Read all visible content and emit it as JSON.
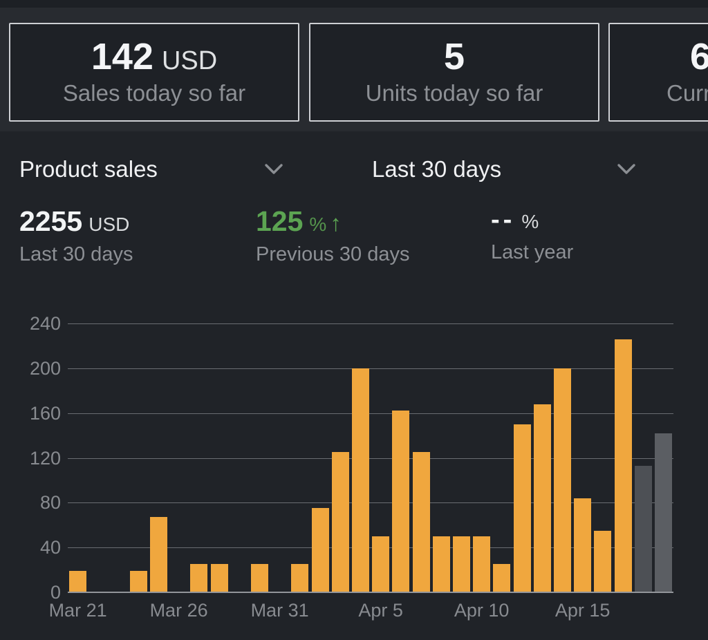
{
  "stat_cards": [
    {
      "value": "142",
      "unit": "USD",
      "label": "Sales today so far"
    },
    {
      "value": "5",
      "unit": "",
      "label": "Units today so far"
    },
    {
      "value": "6",
      "unit": "",
      "label": "Curr"
    }
  ],
  "filters": {
    "metric_dropdown": {
      "selected": "Product sales"
    },
    "range_dropdown": {
      "selected": "Last 30 days"
    }
  },
  "summary": [
    {
      "value": "2255",
      "unit": "USD",
      "label": "Last 30 days",
      "color": "#f2f4f5"
    },
    {
      "value": "125",
      "unit": "%",
      "arrow": "↑",
      "label": "Previous 30 days",
      "color": "#5ca452"
    },
    {
      "value": "--",
      "unit": "%",
      "label": "Last year",
      "color": "#f2f4f5"
    }
  ],
  "chart_data": {
    "type": "bar",
    "title": "",
    "xlabel": "",
    "ylabel": "",
    "grid": true,
    "legend": false,
    "ylim": [
      0,
      240
    ],
    "yticks": [
      0,
      40,
      80,
      120,
      160,
      200,
      240
    ],
    "categories": [
      "Mar 21",
      "Mar 22",
      "Mar 23",
      "Mar 24",
      "Mar 25",
      "Mar 26",
      "Mar 27",
      "Mar 28",
      "Mar 29",
      "Mar 30",
      "Mar 31",
      "Apr 1",
      "Apr 2",
      "Apr 3",
      "Apr 4",
      "Apr 5",
      "Apr 6",
      "Apr 7",
      "Apr 8",
      "Apr 9",
      "Apr 10",
      "Apr 11",
      "Apr 12",
      "Apr 13",
      "Apr 14",
      "Apr 15",
      "Apr 16",
      "Apr 17",
      "Apr 18",
      "Apr 19"
    ],
    "values": [
      19,
      0,
      0,
      19,
      67,
      0,
      25,
      25,
      0,
      25,
      0,
      25,
      75,
      125,
      200,
      50,
      162,
      125,
      50,
      50,
      50,
      25,
      150,
      168,
      200,
      84,
      55,
      226,
      113,
      142
    ],
    "xticks": [
      {
        "index": 0,
        "label": "Mar 21"
      },
      {
        "index": 5,
        "label": "Mar 26"
      },
      {
        "index": 10,
        "label": "Mar 31"
      },
      {
        "index": 15,
        "label": "Apr 5"
      },
      {
        "index": 20,
        "label": "Apr 10"
      },
      {
        "index": 25,
        "label": "Apr 15"
      }
    ],
    "bar_default_color": "#f0a73e",
    "bar_color_overrides": {
      "28": "#4d5055",
      "29": "#5b5e63"
    }
  }
}
